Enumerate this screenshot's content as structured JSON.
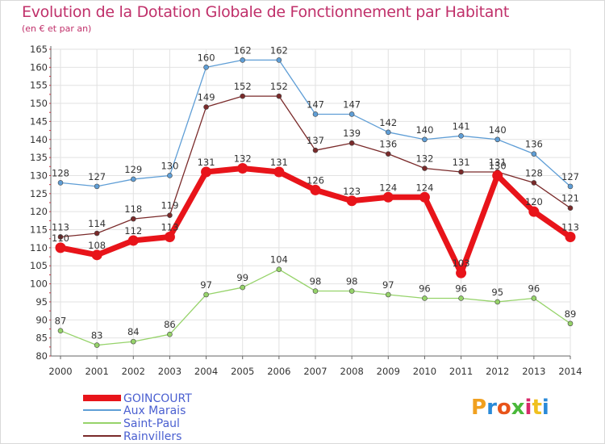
{
  "title": "Evolution de la Dotation Globale de Fonctionnement par Habitant",
  "subtitle": "(en € et par an)",
  "logo_text": "Proxiti",
  "colors": {
    "title": "#c0306a",
    "grid": "#e2e2e2",
    "axis": "#666666"
  },
  "chart_data": {
    "type": "line",
    "title": "Evolution de la Dotation Globale de Fonctionnement par Habitant",
    "subtitle": "(en € et par an)",
    "xlabel": "",
    "ylabel": "",
    "x": [
      "2000",
      "2001",
      "2002",
      "2003",
      "2004",
      "2005",
      "2006",
      "2007",
      "2008",
      "2009",
      "2010",
      "2011",
      "2012",
      "2013",
      "2014"
    ],
    "ylim": [
      80,
      165
    ],
    "yticks": [
      80,
      85,
      90,
      95,
      100,
      105,
      110,
      115,
      120,
      125,
      130,
      135,
      140,
      145,
      150,
      155,
      160,
      165
    ],
    "grid": true,
    "legend_position": "bottom-left",
    "series": [
      {
        "name": "GOINCOURT",
        "color": "#e8141a",
        "values": [
          110,
          108,
          112,
          113,
          131,
          132,
          131,
          126,
          123,
          124,
          124,
          103,
          130,
          120,
          113
        ]
      },
      {
        "name": "Aux Marais",
        "color": "#5f9ed6",
        "values": [
          128,
          127,
          129,
          130,
          160,
          162,
          162,
          147,
          147,
          142,
          140,
          141,
          140,
          136,
          127
        ]
      },
      {
        "name": "Saint-Paul",
        "color": "#96d36a",
        "values": [
          87,
          83,
          84,
          86,
          97,
          99,
          104,
          98,
          98,
          97,
          96,
          96,
          95,
          96,
          89
        ]
      },
      {
        "name": "Rainvillers",
        "color": "#7a2a2a",
        "values": [
          113,
          114,
          118,
          119,
          149,
          152,
          152,
          137,
          139,
          136,
          132,
          131,
          131,
          128,
          121
        ]
      }
    ]
  }
}
